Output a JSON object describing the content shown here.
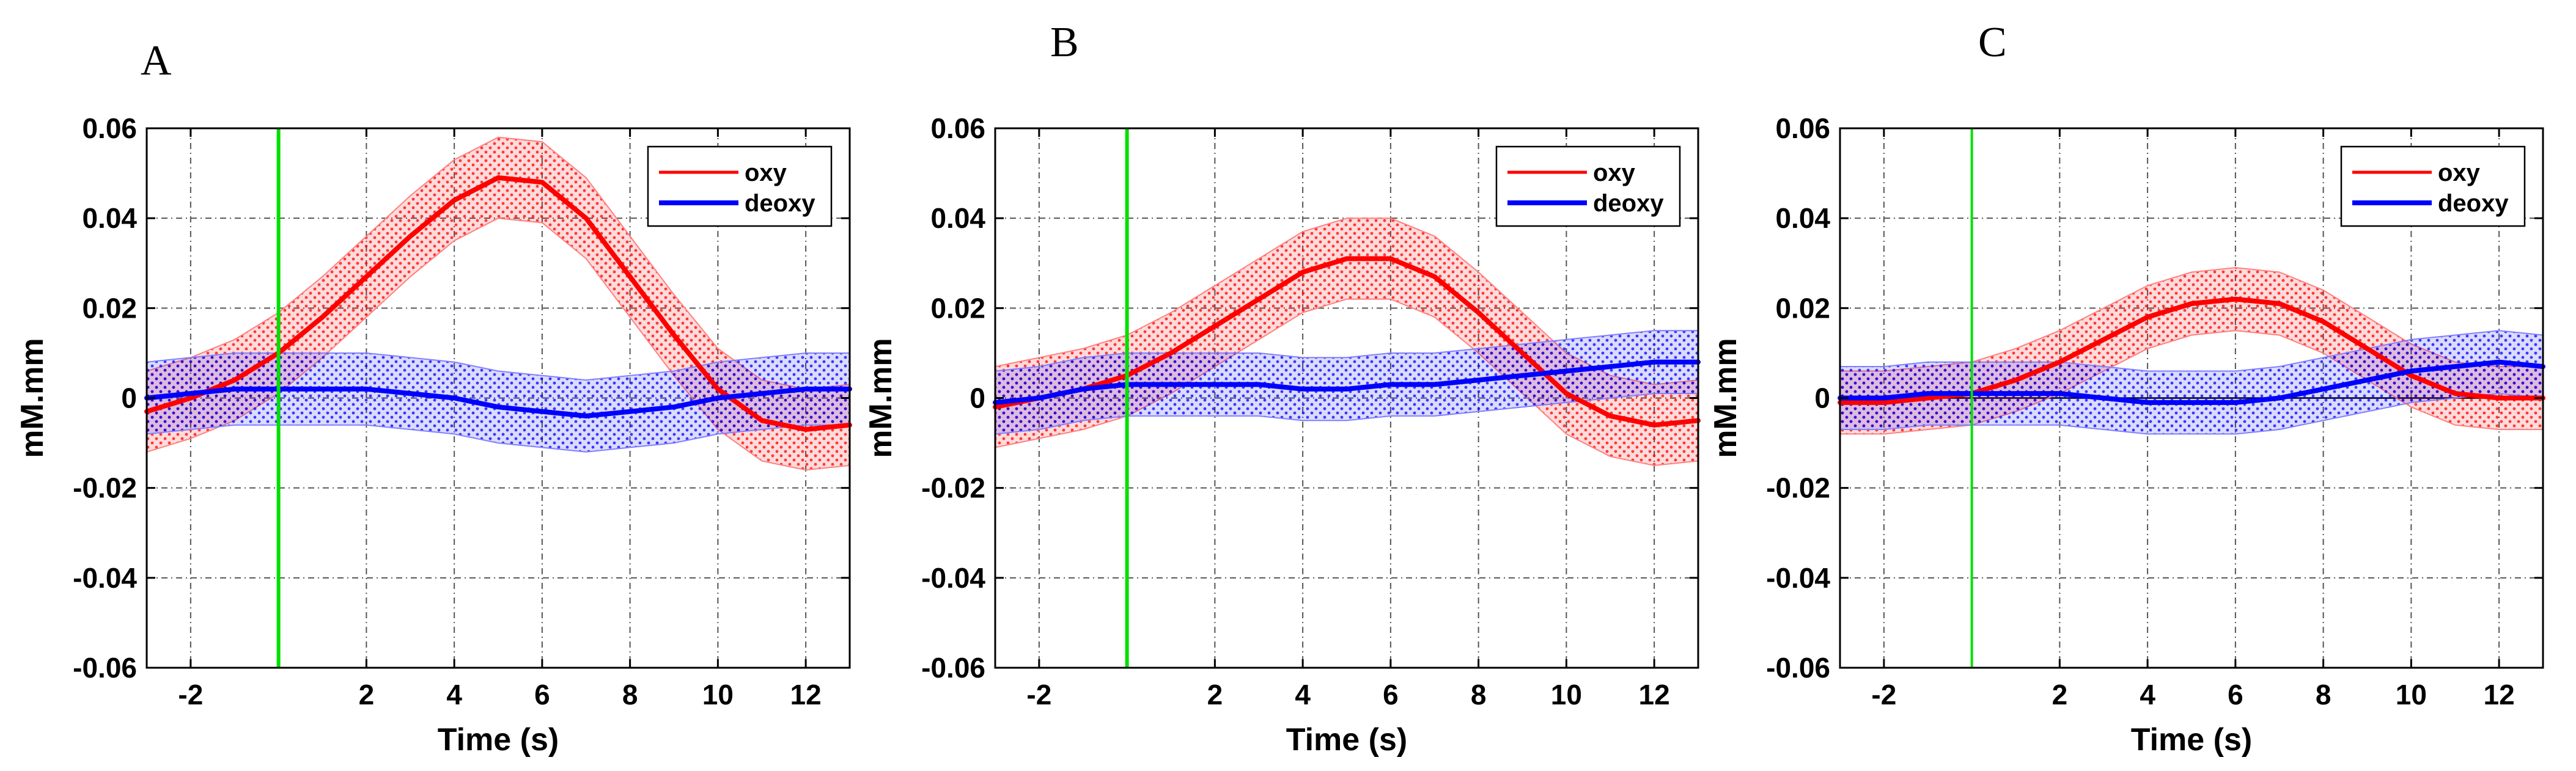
{
  "chart_data": [
    {
      "panel": "A",
      "type": "line",
      "xlabel": "Time (s)",
      "ylabel": "mM.mm",
      "xlim": [
        -3,
        13
      ],
      "ylim": [
        -0.06,
        0.06
      ],
      "xticks": [
        -2,
        2,
        4,
        6,
        8,
        10,
        12
      ],
      "xtick_labels": [
        "-2",
        "2",
        "4",
        "6",
        "8",
        "10",
        "12"
      ],
      "yticks": [
        -0.06,
        -0.04,
        -0.02,
        0,
        0.02,
        0.04,
        0.06
      ],
      "ytick_labels": [
        "-0.06",
        "-0.04",
        "-0.02",
        "0",
        "0.02",
        "0.04",
        "0.06"
      ],
      "grid": true,
      "legend_position": "top-right",
      "stimulus_onset": 0,
      "x": [
        -3,
        -2,
        -1,
        0,
        1,
        2,
        3,
        4,
        5,
        6,
        7,
        8,
        9,
        10,
        11,
        12,
        13
      ],
      "series": [
        {
          "name": "oxy",
          "color": "#ff0000",
          "values": [
            -0.003,
            0.0,
            0.004,
            0.01,
            0.018,
            0.027,
            0.036,
            0.044,
            0.049,
            0.048,
            0.04,
            0.027,
            0.014,
            0.002,
            -0.005,
            -0.007,
            -0.006
          ],
          "band": 0.009
        },
        {
          "name": "deoxy",
          "color": "#0000ff",
          "values": [
            0.0,
            0.001,
            0.002,
            0.002,
            0.002,
            0.002,
            0.001,
            0.0,
            -0.002,
            -0.003,
            -0.004,
            -0.003,
            -0.002,
            0.0,
            0.001,
            0.002,
            0.002
          ],
          "band": 0.008
        }
      ]
    },
    {
      "panel": "B",
      "type": "line",
      "xlabel": "Time (s)",
      "ylabel": "mM.mm",
      "xlim": [
        -3,
        13
      ],
      "ylim": [
        -0.06,
        0.06
      ],
      "xticks": [
        -2,
        2,
        4,
        6,
        8,
        10,
        12
      ],
      "xtick_labels": [
        "-2",
        "2",
        "4",
        "6",
        "8",
        "10",
        "12"
      ],
      "yticks": [
        -0.06,
        -0.04,
        -0.02,
        0,
        0.02,
        0.04,
        0.06
      ],
      "ytick_labels": [
        "-0.06",
        "-0.04",
        "-0.02",
        "0",
        "0.02",
        "0.04",
        "0.06"
      ],
      "grid": true,
      "legend_position": "top-right",
      "stimulus_onset": 0,
      "x": [
        -3,
        -2,
        -1,
        0,
        1,
        2,
        3,
        4,
        5,
        6,
        7,
        8,
        9,
        10,
        11,
        12,
        13
      ],
      "series": [
        {
          "name": "oxy",
          "color": "#ff0000",
          "values": [
            -0.002,
            0.0,
            0.002,
            0.005,
            0.01,
            0.016,
            0.022,
            0.028,
            0.031,
            0.031,
            0.027,
            0.019,
            0.01,
            0.001,
            -0.004,
            -0.006,
            -0.005
          ],
          "band": 0.009
        },
        {
          "name": "deoxy",
          "color": "#0000ff",
          "values": [
            -0.001,
            0.0,
            0.002,
            0.003,
            0.003,
            0.003,
            0.003,
            0.002,
            0.002,
            0.003,
            0.003,
            0.004,
            0.005,
            0.006,
            0.007,
            0.008,
            0.008
          ],
          "band": 0.007
        }
      ]
    },
    {
      "panel": "C",
      "type": "line",
      "xlabel": "Time (s)",
      "ylabel": "mM.mm",
      "xlim": [
        -3,
        13
      ],
      "ylim": [
        -0.06,
        0.06
      ],
      "xticks": [
        -2,
        2,
        4,
        6,
        8,
        10,
        12
      ],
      "xtick_labels": [
        "-2",
        "2",
        "4",
        "6",
        "8",
        "10",
        "12"
      ],
      "yticks": [
        -0.06,
        -0.04,
        -0.02,
        0,
        0.02,
        0.04,
        0.06
      ],
      "ytick_labels": [
        "-0.06",
        "-0.04",
        "-0.02",
        "0",
        "0.02",
        "0.04",
        "0.06"
      ],
      "grid": true,
      "legend_position": "top-right",
      "stimulus_onset": 0,
      "x": [
        -3,
        -2,
        -1,
        0,
        1,
        2,
        3,
        4,
        5,
        6,
        7,
        8,
        9,
        10,
        11,
        12,
        13
      ],
      "series": [
        {
          "name": "oxy",
          "color": "#ff0000",
          "values": [
            -0.001,
            -0.001,
            0.0,
            0.001,
            0.004,
            0.008,
            0.013,
            0.018,
            0.021,
            0.022,
            0.021,
            0.017,
            0.011,
            0.005,
            0.001,
            0.0,
            0.0
          ],
          "band": 0.007
        },
        {
          "name": "deoxy",
          "color": "#0000ff",
          "values": [
            0.0,
            0.0,
            0.001,
            0.001,
            0.001,
            0.001,
            0.0,
            -0.001,
            -0.001,
            -0.001,
            0.0,
            0.002,
            0.004,
            0.006,
            0.007,
            0.008,
            0.007
          ],
          "band": 0.007
        }
      ]
    }
  ]
}
